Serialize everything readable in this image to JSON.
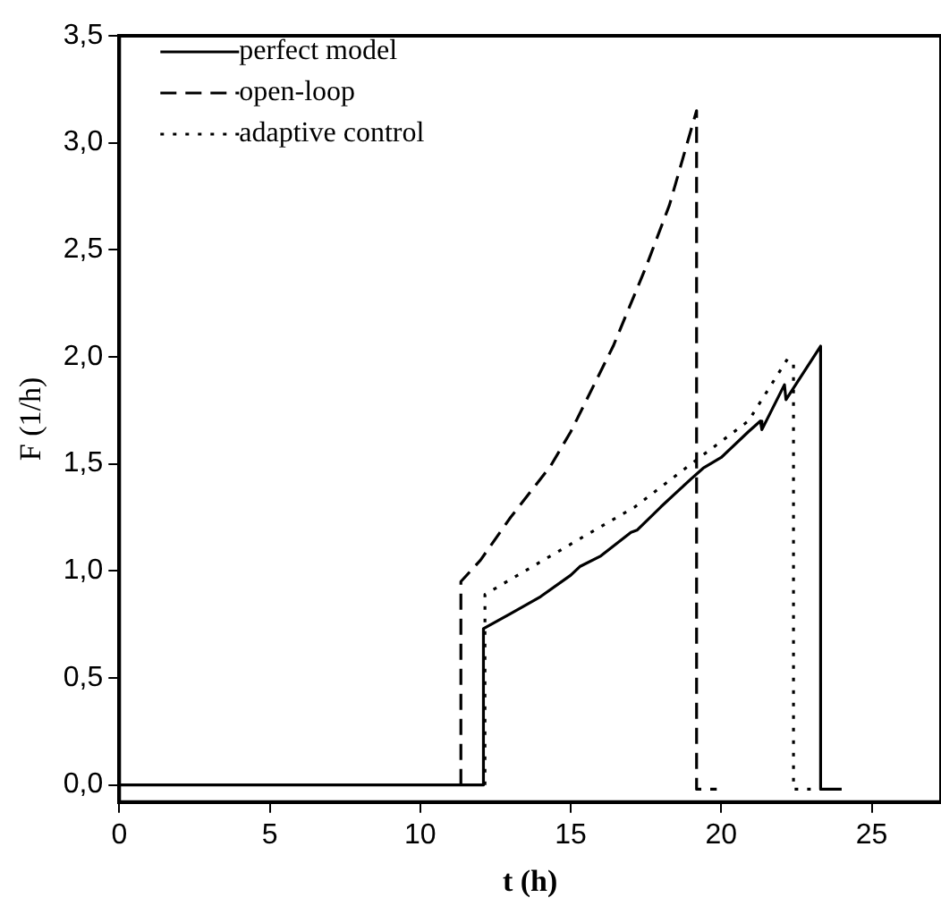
{
  "chart_data": {
    "type": "line",
    "xlabel": "t (h)",
    "ylabel": "F (1/h)",
    "xlim": [
      0,
      27.3
    ],
    "xticks": [
      0,
      5,
      10,
      15,
      20,
      25
    ],
    "ylim": [
      -0.08,
      3.5
    ],
    "yticks": [
      {
        "value": 0,
        "label": "0,0"
      },
      {
        "value": 0.5,
        "label": "0,5"
      },
      {
        "value": 1,
        "label": "1,0"
      },
      {
        "value": 1.5,
        "label": "1,5"
      },
      {
        "value": 2,
        "label": "2,0"
      },
      {
        "value": 2.5,
        "label": "2,5"
      },
      {
        "value": 3,
        "label": "3,0"
      },
      {
        "value": 3.5,
        "label": "3,5"
      }
    ],
    "grid": false,
    "legend": "top left",
    "marker": "none",
    "series": [
      {
        "name": "perfect model",
        "color": "#000000",
        "line_style": "solid",
        "x": [
          0,
          12.1,
          12.1,
          13,
          14,
          15,
          15.3,
          16,
          17,
          17.2,
          18,
          19,
          19.4,
          20,
          20.9,
          21.3,
          21.35,
          22.1,
          22.15,
          23.3,
          23.3,
          24
        ],
        "values": [
          0,
          0,
          0.73,
          0.8,
          0.88,
          0.98,
          1.02,
          1.07,
          1.18,
          1.19,
          1.3,
          1.43,
          1.48,
          1.53,
          1.65,
          1.7,
          1.66,
          1.87,
          1.8,
          2.05,
          -0.02,
          -0.02
        ]
      },
      {
        "name": "open-loop",
        "color": "#000000",
        "line_style": "dashed",
        "x": [
          11.35,
          11.35,
          12,
          13,
          14.33,
          15,
          16.41,
          17.5,
          18.28,
          19.18,
          19.18,
          19.85
        ],
        "values": [
          0,
          0.95,
          1.05,
          1.25,
          1.49,
          1.65,
          2.05,
          2.42,
          2.71,
          3.15,
          -0.02,
          -0.02
        ]
      },
      {
        "name": "adaptive control",
        "color": "#000000",
        "line_style": "dotted",
        "x": [
          12.15,
          12.15,
          15.06,
          17.14,
          19,
          20.9,
          22.2,
          22.4,
          22.4,
          23
        ],
        "values": [
          0,
          0.89,
          1.13,
          1.3,
          1.5,
          1.7,
          1.99,
          1.97,
          -0.02,
          -0.02
        ]
      }
    ]
  }
}
